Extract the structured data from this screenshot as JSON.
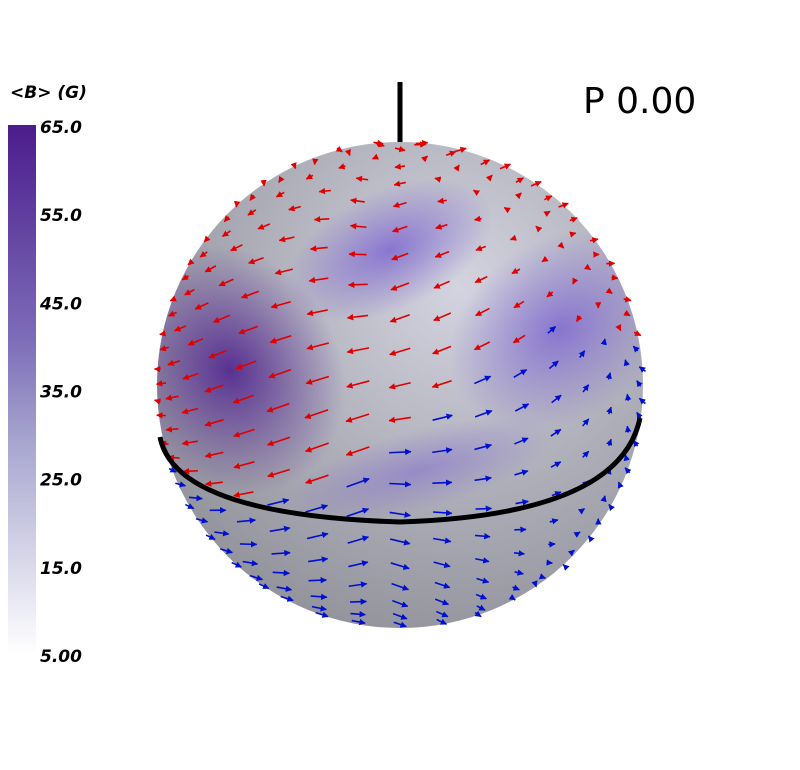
{
  "colorbar": {
    "title": "<B> (G)",
    "ticks": [
      "65.0",
      "55.0",
      "45.0",
      "35.0",
      "25.0",
      "15.0",
      "5.00"
    ]
  },
  "phase_label": "P  0.00"
}
